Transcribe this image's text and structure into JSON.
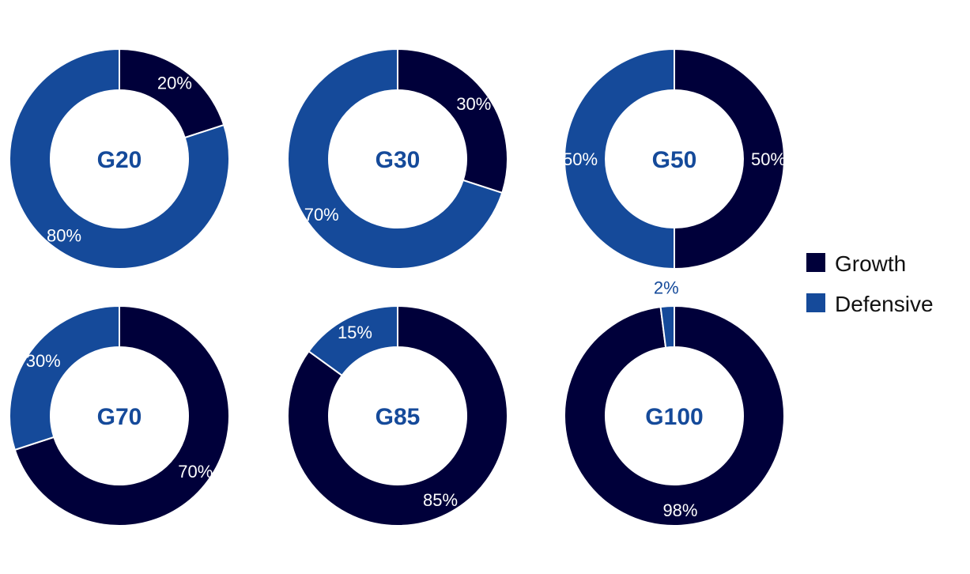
{
  "colors": {
    "growth": "#00003a",
    "defensive": "#154a9a",
    "center_text": "#154a9a",
    "outside_label": "#154a9a"
  },
  "legend": [
    {
      "label": "Growth",
      "color": "#00003a"
    },
    {
      "label": "Defensive",
      "color": "#154a9a"
    }
  ],
  "chart_data": [
    {
      "type": "pie",
      "donut": true,
      "center_label": "G20",
      "slices": [
        {
          "category": "Growth",
          "value": 20,
          "label": "20%"
        },
        {
          "category": "Defensive",
          "value": 80,
          "label": "80%"
        }
      ]
    },
    {
      "type": "pie",
      "donut": true,
      "center_label": "G30",
      "slices": [
        {
          "category": "Growth",
          "value": 30,
          "label": "30%"
        },
        {
          "category": "Defensive",
          "value": 70,
          "label": "70%"
        }
      ]
    },
    {
      "type": "pie",
      "donut": true,
      "center_label": "G50",
      "slices": [
        {
          "category": "Growth",
          "value": 50,
          "label": "50%"
        },
        {
          "category": "Defensive",
          "value": 50,
          "label": "50%"
        }
      ]
    },
    {
      "type": "pie",
      "donut": true,
      "center_label": "G70",
      "slices": [
        {
          "category": "Growth",
          "value": 70,
          "label": "70%"
        },
        {
          "category": "Defensive",
          "value": 30,
          "label": "30%"
        }
      ]
    },
    {
      "type": "pie",
      "donut": true,
      "center_label": "G85",
      "slices": [
        {
          "category": "Growth",
          "value": 85,
          "label": "85%"
        },
        {
          "category": "Defensive",
          "value": 15,
          "label": "15%"
        }
      ]
    },
    {
      "type": "pie",
      "donut": true,
      "center_label": "G100",
      "slices": [
        {
          "category": "Growth",
          "value": 98,
          "label": "98%"
        },
        {
          "category": "Defensive",
          "value": 2,
          "label": "2%"
        }
      ]
    }
  ]
}
